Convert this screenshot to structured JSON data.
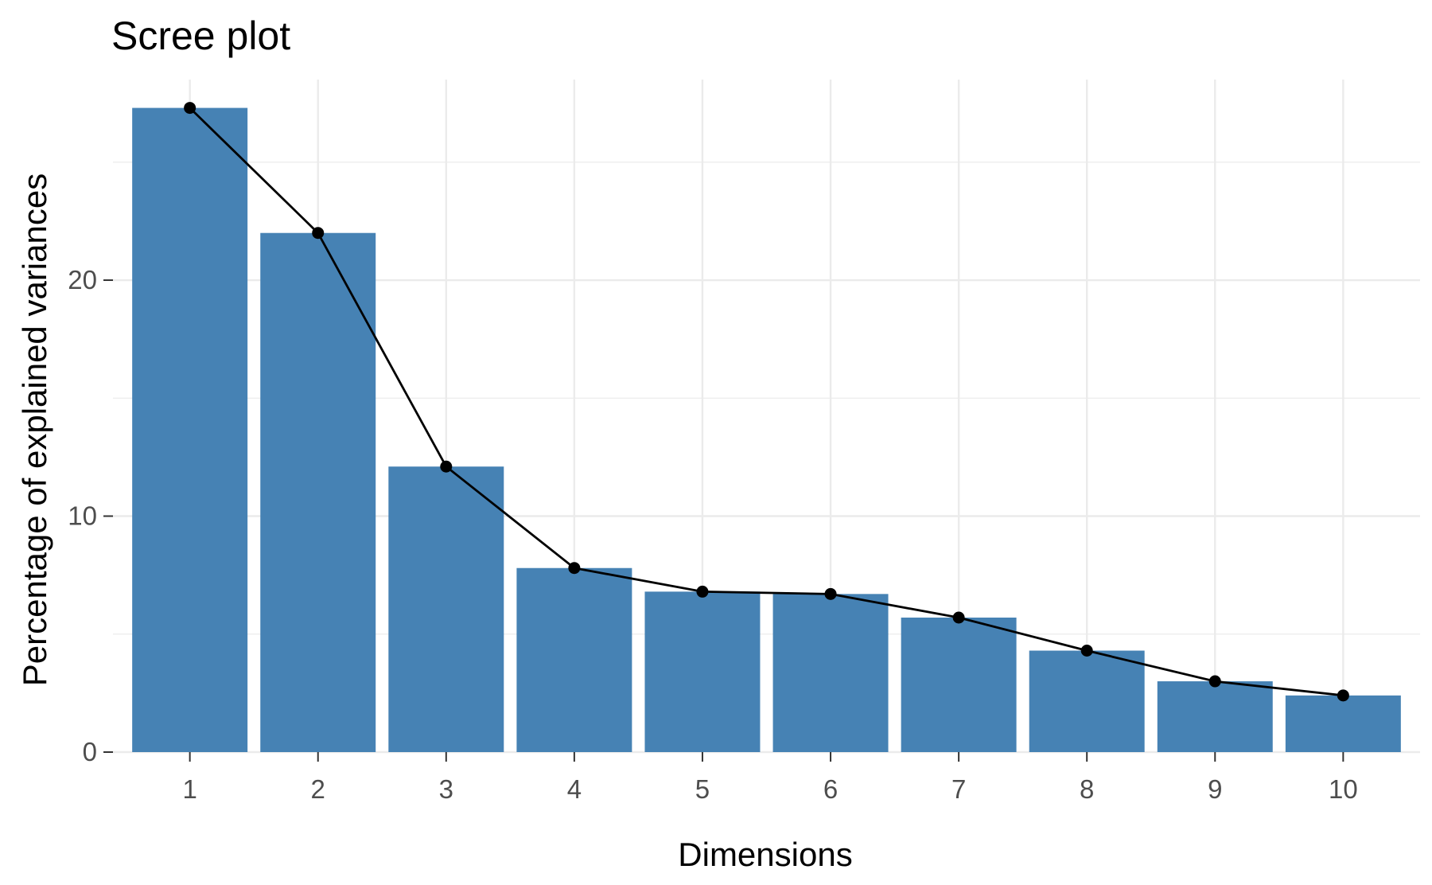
{
  "chart_data": {
    "type": "bar",
    "title": "Scree plot",
    "xlabel": "Dimensions",
    "ylabel": "Percentage of explained variances",
    "categories": [
      "1",
      "2",
      "3",
      "4",
      "5",
      "6",
      "7",
      "8",
      "9",
      "10"
    ],
    "values": [
      27.3,
      22.0,
      12.1,
      7.8,
      6.8,
      6.7,
      5.7,
      4.3,
      3.0,
      2.4
    ],
    "y_ticks": [
      "0",
      "10",
      "20"
    ],
    "ylim": [
      0,
      28.5
    ],
    "bar_color": "#4682B4",
    "line_color": "#000000",
    "grid": true,
    "legend": "none",
    "overlay": "line-with-points"
  }
}
